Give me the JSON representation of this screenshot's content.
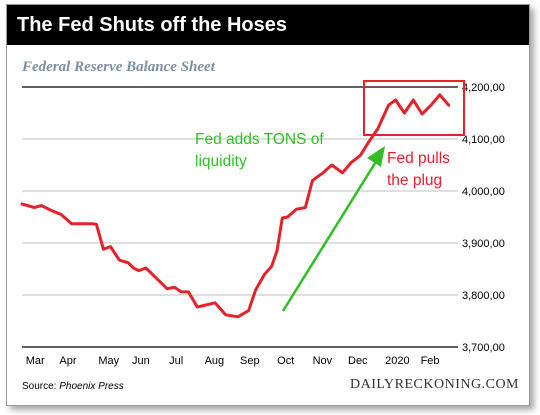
{
  "header": {
    "title": "The Fed Shuts off the Hoses"
  },
  "footer": {
    "source_prefix": "Source: ",
    "source_name": "Phoenix Press",
    "brand": "DAILYRECKONING.COM"
  },
  "colors": {
    "line": "#e3222b",
    "green_annotation": "#2fbf24",
    "red_annotation": "#e3222b",
    "title_bg": "#000000",
    "subtitle": "#7a8fa3",
    "grid": "#aaaaaa"
  },
  "chart_data": {
    "type": "line",
    "title": "Federal Reserve Balance Sheet",
    "xlabel": "",
    "ylabel": "",
    "ylim": [
      3700,
      4200
    ],
    "yticks": [
      3700,
      3800,
      3900,
      4000,
      4100,
      4200
    ],
    "ytick_labels": [
      "3,700,00",
      "3,800,00",
      "3,900,00",
      "4,000,00",
      "4,100,00",
      "4,200,00"
    ],
    "xlim": [
      0,
      12.2
    ],
    "xticks": [
      {
        "label": "Mar",
        "pos": 0.05
      },
      {
        "label": "Apr",
        "pos": 1.0
      },
      {
        "label": "May",
        "pos": 2.1
      },
      {
        "label": "Jun",
        "pos": 3.05
      },
      {
        "label": "Jul",
        "pos": 4.1
      },
      {
        "label": "Aug",
        "pos": 5.1
      },
      {
        "label": "Sep",
        "pos": 6.1
      },
      {
        "label": "Oct",
        "pos": 7.15
      },
      {
        "label": "Nov",
        "pos": 8.15
      },
      {
        "label": "Dec",
        "pos": 9.15
      },
      {
        "label": "2020",
        "pos": 10.2
      },
      {
        "label": "Feb",
        "pos": 11.2
      }
    ],
    "grid": true,
    "series": [
      {
        "x": [
          0,
          0.35,
          0.55,
          0.85,
          1.1,
          1.4,
          1.7,
          2.0,
          2.1,
          2.3,
          2.5,
          2.75,
          3.0,
          3.15,
          3.3,
          3.5,
          3.8,
          4.1,
          4.3,
          4.5,
          4.7,
          4.95,
          5.15,
          5.45,
          5.75,
          6.1,
          6.4,
          6.6,
          6.85,
          7.05,
          7.2,
          7.35,
          7.5,
          7.75,
          8.0,
          8.2,
          8.5,
          8.75,
          9.05,
          9.3,
          9.55,
          9.8,
          10.05,
          10.35,
          10.55,
          10.8,
          11.05,
          11.3,
          11.55,
          11.8,
          12.05
        ],
        "y": [
          3975,
          3968,
          3972,
          3962,
          3955,
          3937,
          3937,
          3937,
          3936,
          3888,
          3893,
          3867,
          3862,
          3852,
          3847,
          3852,
          3832,
          3812,
          3815,
          3806,
          3806,
          3777,
          3780,
          3785,
          3762,
          3758,
          3770,
          3810,
          3840,
          3855,
          3885,
          3948,
          3950,
          3965,
          3968,
          4020,
          4035,
          4050,
          4035,
          4055,
          4068,
          4095,
          4120,
          4165,
          4175,
          4150,
          4175,
          4148,
          4165,
          4185,
          4165
        ]
      }
    ],
    "annotations": [
      {
        "text_lines": [
          "Fed adds TONS of",
          "liquidity"
        ],
        "color": "green"
      },
      {
        "text_lines": [
          "Fed pulls",
          "the plug"
        ],
        "color": "red"
      }
    ]
  }
}
